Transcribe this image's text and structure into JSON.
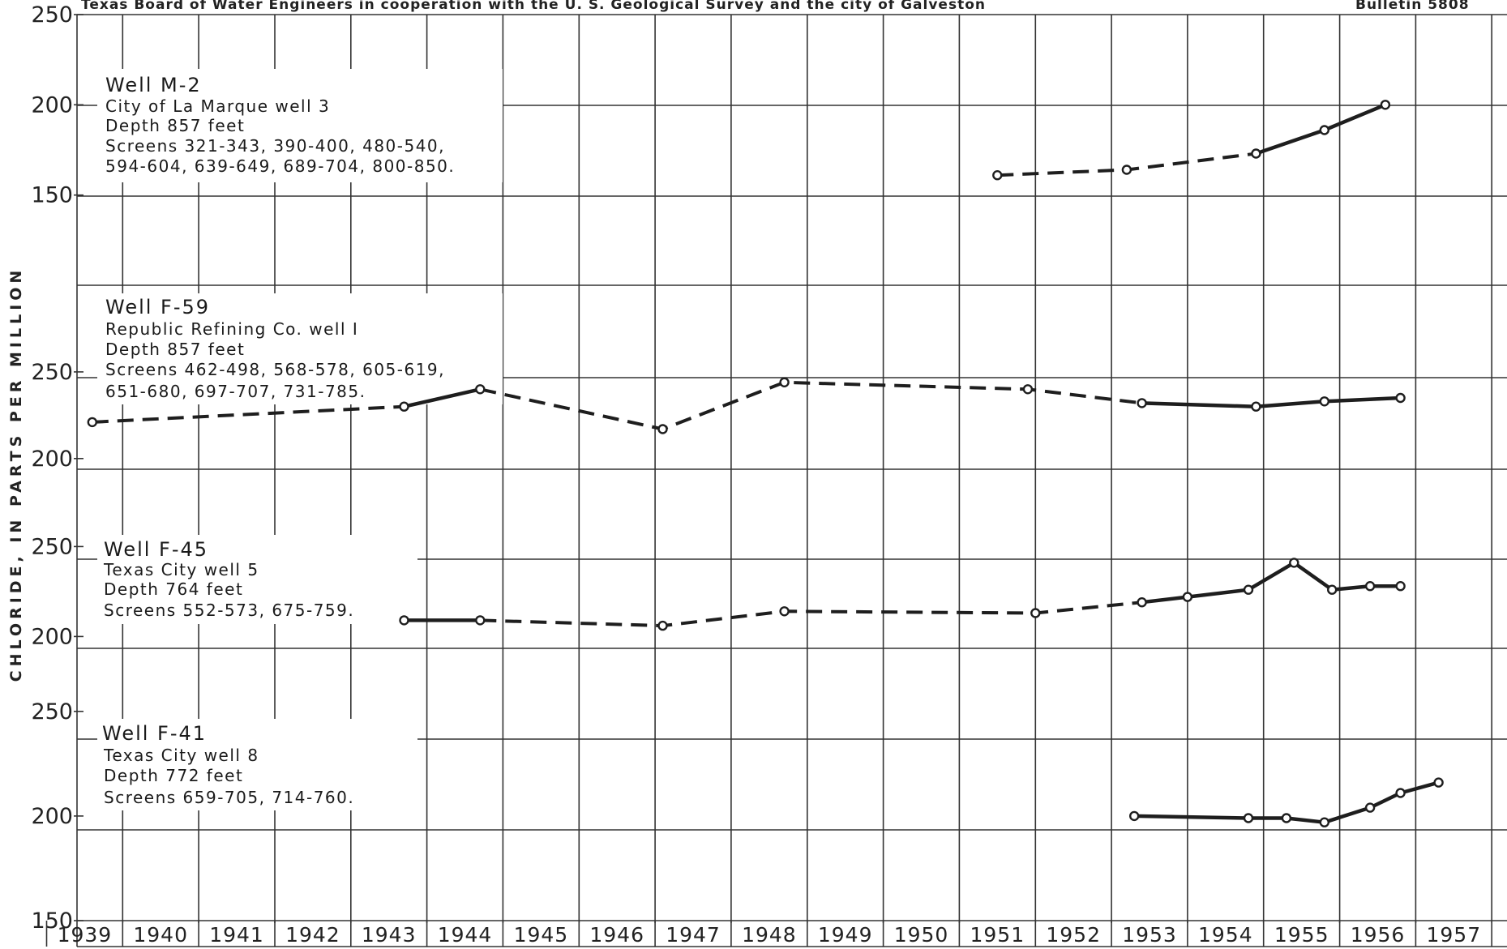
{
  "header": {
    "left": "Texas Board of Water Engineers in cooperation with the U. S. Geological Survey and the city of Galveston",
    "right": "Bulletin 5808"
  },
  "chart_data": {
    "type": "line",
    "ylabel": "CHLORIDE, IN PARTS PER MILLION",
    "x_tick_labels": [
      "1939",
      "1940",
      "1941",
      "1942",
      "1943",
      "1944",
      "1945",
      "1946",
      "1947",
      "1948",
      "1949",
      "1950",
      "1951",
      "1952",
      "1953",
      "1954",
      "1955",
      "1956",
      "1957"
    ],
    "xlim": [
      1938.9,
      1957.7
    ],
    "grid": true,
    "panels": [
      {
        "name": "Well M-2",
        "annotation": [
          "Well M-2",
          "City of La Marque well 3",
          "Depth 857 feet",
          "Screens 321-343, 390-400, 480-540,",
          "594-604, 639-649, 689-704, 800-850."
        ],
        "ylim": [
          100,
          250
        ],
        "y_ticks": [
          "250",
          "200",
          "150"
        ],
        "segments": [
          {
            "style": "dashed",
            "points": [
              [
                1951.0,
                161
              ],
              [
                1952.7,
                164
              ],
              [
                1954.4,
                173
              ]
            ]
          },
          {
            "style": "solid",
            "points": [
              [
                1954.4,
                173
              ],
              [
                1955.3,
                186
              ],
              [
                1956.1,
                200
              ]
            ]
          }
        ]
      },
      {
        "name": "Well F-59",
        "annotation": [
          "Well F-59",
          "Republic Refining Co. well I",
          "Depth 857 feet",
          "Screens 462-498, 568-578, 605-619,",
          "651-680, 697-707, 731-785."
        ],
        "ylim": [
          170,
          300
        ],
        "y_ticks": [
          "250",
          "200"
        ],
        "segments": [
          {
            "style": "dashed",
            "points": [
              [
                1939.1,
                221
              ],
              [
                1943.2,
                230
              ]
            ]
          },
          {
            "style": "solid",
            "points": [
              [
                1943.2,
                230
              ],
              [
                1944.2,
                240
              ]
            ]
          },
          {
            "style": "dashed",
            "points": [
              [
                1944.2,
                240
              ],
              [
                1946.6,
                217
              ],
              [
                1948.2,
                244
              ],
              [
                1951.4,
                240
              ],
              [
                1952.9,
                232
              ]
            ]
          },
          {
            "style": "solid",
            "points": [
              [
                1952.9,
                232
              ],
              [
                1954.4,
                230
              ],
              [
                1955.3,
                233
              ],
              [
                1956.3,
                235
              ]
            ]
          }
        ]
      },
      {
        "name": "Well F-45",
        "annotation": [
          "Well F-45",
          "Texas City well 5",
          "Depth 764 feet",
          "Screens 552-573, 675-759."
        ],
        "ylim": [
          170,
          270
        ],
        "y_ticks": [
          "250",
          "200"
        ],
        "segments": [
          {
            "style": "solid",
            "points": [
              [
                1943.2,
                209
              ],
              [
                1944.2,
                209
              ]
            ]
          },
          {
            "style": "dashed",
            "points": [
              [
                1944.2,
                209
              ],
              [
                1946.6,
                206
              ],
              [
                1948.2,
                214
              ],
              [
                1951.5,
                213
              ],
              [
                1952.9,
                219
              ]
            ]
          },
          {
            "style": "solid",
            "points": [
              [
                1952.9,
                219
              ],
              [
                1953.5,
                222
              ],
              [
                1954.3,
                226
              ],
              [
                1954.9,
                241
              ],
              [
                1955.4,
                226
              ],
              [
                1955.9,
                228
              ],
              [
                1956.3,
                228
              ]
            ]
          }
        ]
      },
      {
        "name": "Well F-41",
        "annotation": [
          "Well F-41",
          "Texas City well 8",
          "Depth 772 feet",
          "Screens 659-705, 714-760."
        ],
        "ylim": [
          150,
          260
        ],
        "y_ticks": [
          "250",
          "200",
          "150"
        ],
        "segments": [
          {
            "style": "solid",
            "points": [
              [
                1952.8,
                200
              ],
              [
                1954.3,
                199
              ],
              [
                1954.8,
                199
              ],
              [
                1955.3,
                197
              ],
              [
                1955.9,
                204
              ],
              [
                1956.3,
                211
              ],
              [
                1956.8,
                216
              ]
            ]
          }
        ]
      }
    ]
  }
}
